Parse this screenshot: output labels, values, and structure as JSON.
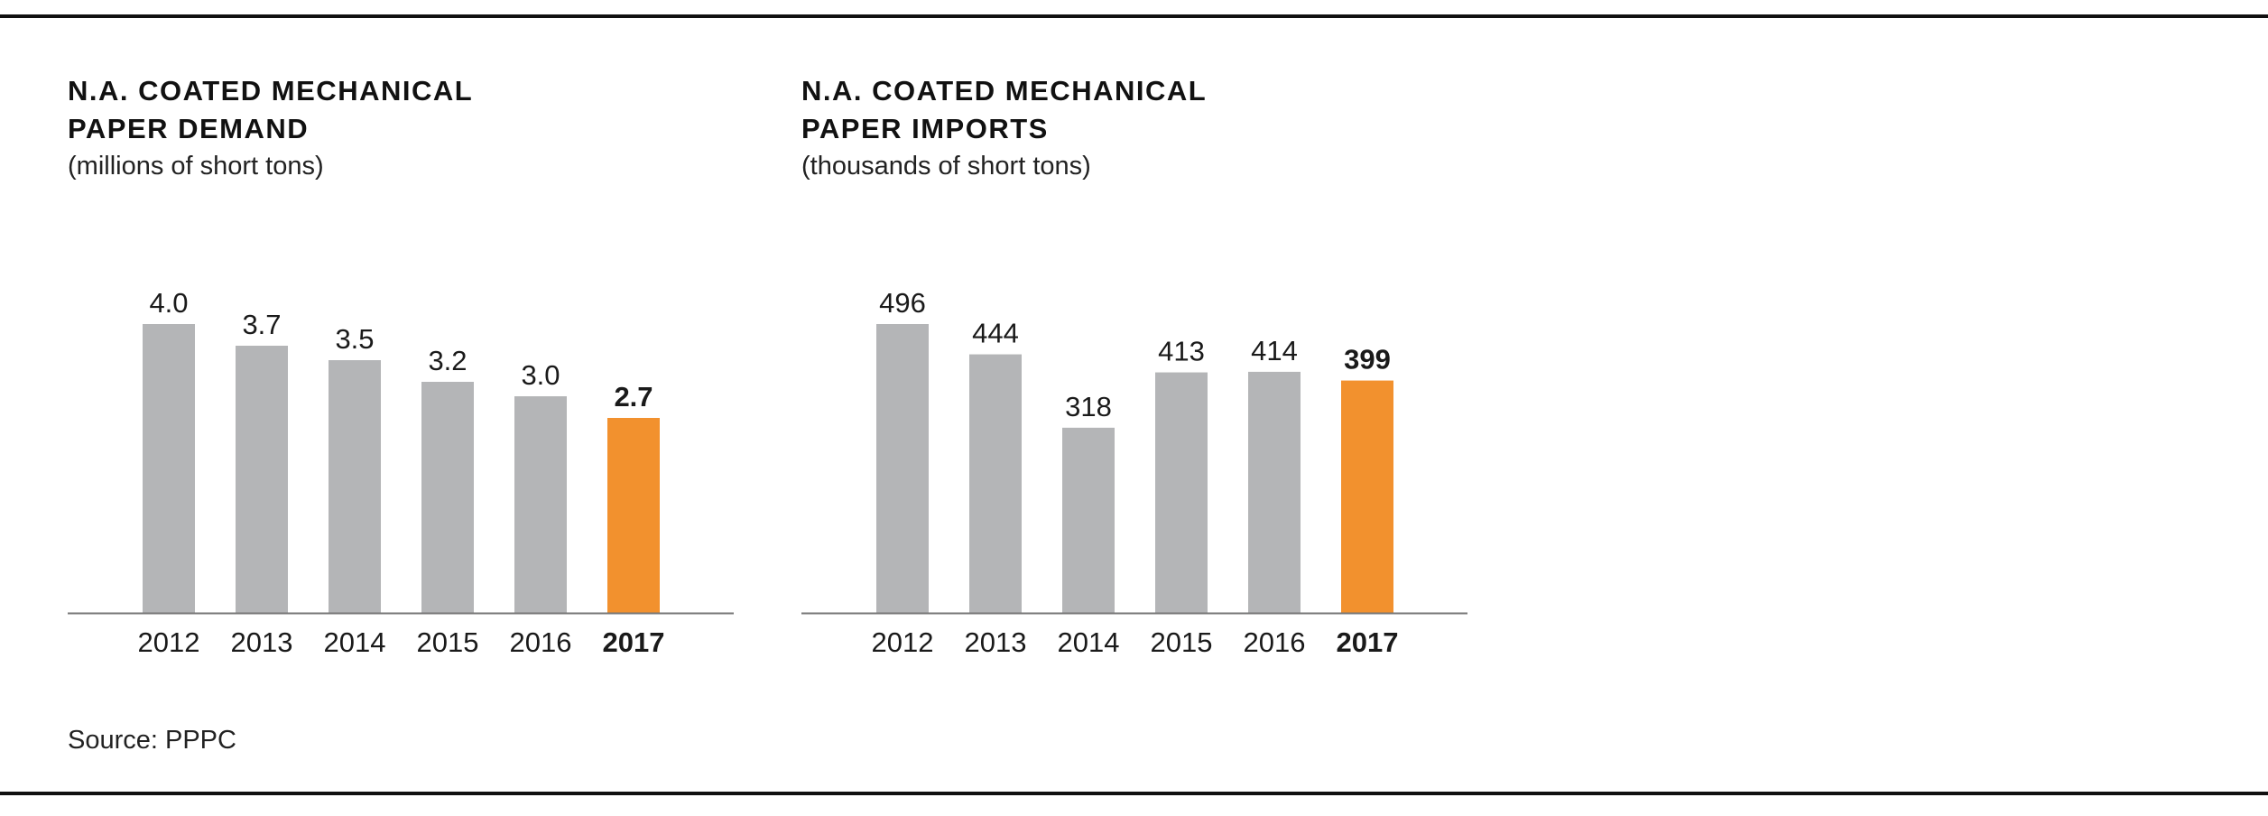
{
  "colors": {
    "bar": "#b4b5b7",
    "highlight": "#f2912e",
    "axis": "#777777",
    "rule": "#111111"
  },
  "source": "Source: PPPC",
  "chart_data": [
    {
      "type": "bar",
      "title_line1": "N.A. COATED MECHANICAL",
      "title_line2": "PAPER DEMAND",
      "subtitle": "(millions of short tons)",
      "categories": [
        "2012",
        "2013",
        "2014",
        "2015",
        "2016",
        "2017"
      ],
      "values": [
        4.0,
        3.7,
        3.5,
        3.2,
        3.0,
        2.7
      ],
      "value_labels": [
        "4.0",
        "3.7",
        "3.5",
        "3.2",
        "3.0",
        "2.7"
      ],
      "highlight_index": 5,
      "ylim": [
        0,
        4.0
      ],
      "xlabel": "",
      "ylabel": ""
    },
    {
      "type": "bar",
      "title_line1": "N.A. COATED MECHANICAL",
      "title_line2": "PAPER IMPORTS",
      "subtitle": "(thousands of short tons)",
      "categories": [
        "2012",
        "2013",
        "2014",
        "2015",
        "2016",
        "2017"
      ],
      "values": [
        496,
        444,
        318,
        413,
        414,
        399
      ],
      "value_labels": [
        "496",
        "444",
        "318",
        "413",
        "414",
        "399"
      ],
      "highlight_index": 5,
      "ylim": [
        0,
        496
      ],
      "xlabel": "",
      "ylabel": ""
    }
  ]
}
